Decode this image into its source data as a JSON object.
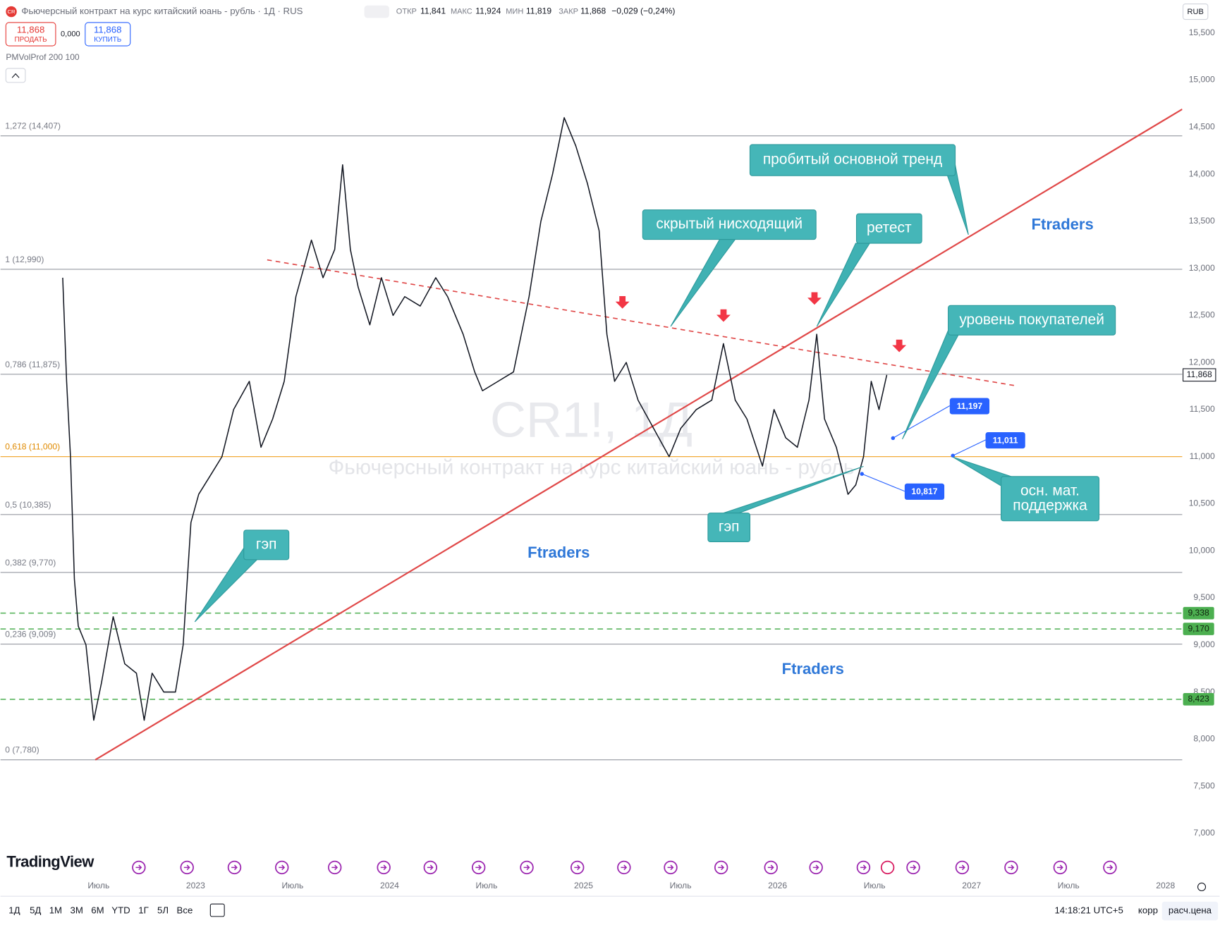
{
  "header": {
    "logo": "CR",
    "title": "Фьючерсный контракт на курс китайский юань - рубль · 1Д · RUS",
    "ohlc": [
      {
        "label": "ОТКР",
        "value": "11,841"
      },
      {
        "label": "МАКС",
        "value": "11,924"
      },
      {
        "label": "МИН",
        "value": "11,819"
      },
      {
        "label": "ЗАКР",
        "value": "11,868"
      }
    ],
    "change": "−0,029 (−0,24%)",
    "sell": {
      "price": "11,868",
      "label": "ПРОДАТЬ"
    },
    "spread": "0,000",
    "buy": {
      "price": "11,868",
      "label": "КУПИТЬ"
    },
    "indicator": "PMVolProf 200 100",
    "currency": "RUB"
  },
  "chart_data": {
    "type": "line",
    "watermark": "CR1!, 1Д",
    "watermark_subtitle": "Фьючерсный контракт на курс китайский юань - рубль",
    "color": "#131722",
    "x": [
      2022.315,
      2022.335,
      2022.355,
      2022.375,
      2022.395,
      2022.435,
      2022.475,
      2022.515,
      2022.575,
      2022.635,
      2022.695,
      2022.735,
      2022.776,
      2022.836,
      2022.896,
      2022.936,
      2022.976,
      2023.016,
      2023.076,
      2023.136,
      2023.196,
      2023.277,
      2023.337,
      2023.397,
      2023.457,
      2023.517,
      2023.597,
      2023.657,
      2023.717,
      2023.758,
      2023.798,
      2023.838,
      2023.898,
      2023.958,
      2024.018,
      2024.078,
      2024.158,
      2024.238,
      2024.299,
      2024.379,
      2024.439,
      2024.479,
      2024.559,
      2024.639,
      2024.719,
      2024.78,
      2024.84,
      2024.9,
      2024.96,
      2025.02,
      2025.08,
      2025.12,
      2025.16,
      2025.22,
      2025.281,
      2025.361,
      2025.441,
      2025.501,
      2025.581,
      2025.661,
      2025.721,
      2025.782,
      2025.842,
      2025.922,
      2025.982,
      2026.042,
      2026.102,
      2026.162,
      2026.202,
      2026.242,
      2026.303,
      2026.363,
      2026.403,
      2026.443,
      2026.483,
      2026.523,
      2026.563
    ],
    "values": [
      12.9,
      11.8,
      11.0,
      9.7,
      9.2,
      9.0,
      8.2,
      8.6,
      9.3,
      8.8,
      8.7,
      8.2,
      8.7,
      8.5,
      8.5,
      9.0,
      10.3,
      10.6,
      10.8,
      11.0,
      11.5,
      11.8,
      11.1,
      11.4,
      11.8,
      12.7,
      13.3,
      12.9,
      13.2,
      14.1,
      13.2,
      12.8,
      12.4,
      12.9,
      12.5,
      12.7,
      12.6,
      12.9,
      12.7,
      12.3,
      11.9,
      11.7,
      11.8,
      11.9,
      12.7,
      13.5,
      14.0,
      14.6,
      14.3,
      13.9,
      13.4,
      12.3,
      11.8,
      12.0,
      11.6,
      11.3,
      11.0,
      11.3,
      11.5,
      11.6,
      12.2,
      11.6,
      11.4,
      10.9,
      11.5,
      11.2,
      11.1,
      11.6,
      12.3,
      11.4,
      11.1,
      10.6,
      10.7,
      11.0,
      11.8,
      11.5,
      11.868
    ],
    "xlim": [
      2021.994,
      2028.086
    ],
    "xticks": [
      {
        "value": 2022.5,
        "label": "Июль"
      },
      2023,
      {
        "value": 2023.5,
        "label": "Июль"
      },
      2024,
      {
        "value": 2024.5,
        "label": "Июль"
      },
      2025,
      {
        "value": 2025.5,
        "label": "Июль"
      },
      2026,
      {
        "value": 2026.5,
        "label": "Июль"
      },
      2027,
      {
        "value": 2027.5,
        "label": "Июль"
      },
      2028
    ],
    "ylim": [
      6.81,
      15.85
    ],
    "yticks": [
      {
        "value": 7.0,
        "label": "7,000"
      },
      {
        "value": 7.5,
        "label": "7,500"
      },
      {
        "value": 8.0,
        "label": "8,000"
      },
      {
        "value": 8.5,
        "label": "8,500"
      },
      {
        "value": 9.0,
        "label": "9,000"
      },
      {
        "value": 9.5,
        "label": "9,500"
      },
      {
        "value": 10.0,
        "label": "10,000"
      },
      {
        "value": 10.5,
        "label": "10,500"
      },
      {
        "value": 11.0,
        "label": "11,000"
      },
      {
        "value": 11.5,
        "label": "11,500"
      },
      {
        "value": 12.0,
        "label": "12,000"
      },
      {
        "value": 12.5,
        "label": "12,500"
      },
      {
        "value": 13.0,
        "label": "13,000"
      },
      {
        "value": 13.5,
        "label": "13,500"
      },
      {
        "value": 14.0,
        "label": "14,000"
      },
      {
        "value": 14.5,
        "label": "14,500"
      },
      {
        "value": 15.0,
        "label": "15,000"
      },
      {
        "value": 15.5,
        "label": "15,500"
      }
    ],
    "grid": false,
    "last_price": {
      "value": 11.868,
      "label": "11,868"
    },
    "levels": [
      {
        "label": "1,272 (14,407)",
        "value": 14.407,
        "color": "#9598a1"
      },
      {
        "label": "1 (12,990)",
        "value": 12.99,
        "color": "#9598a1"
      },
      {
        "label": "0,786 (11,875)",
        "value": 11.875,
        "color": "#9598a1"
      },
      {
        "label": "0,618 (11,000)",
        "value": 11.0,
        "color": "#f0a020"
      },
      {
        "label": "0,5 (10,385)",
        "value": 10.385,
        "color": "#9598a1"
      },
      {
        "label": "0,382 (9,770)",
        "value": 9.77,
        "color": "#9598a1"
      },
      {
        "label": "0,236 (9,009)",
        "value": 9.009,
        "color": "#9598a1"
      },
      {
        "label": "0 (7,780)",
        "value": 7.78,
        "color": "#9598a1"
      }
    ],
    "support_levels": [
      {
        "value": 9.338,
        "label": "9,338"
      },
      {
        "value": 9.17,
        "label": "9,170"
      },
      {
        "value": 8.423,
        "label": "8,423"
      }
    ],
    "support_color": "#4caf50",
    "trendlines": [
      {
        "points": [
          [
            2022.483,
            7.78
          ],
          [
            2028.086,
            14.69
          ]
        ],
        "color": "#e04848",
        "dashed": false
      },
      {
        "points": [
          [
            2023.369,
            13.09
          ],
          [
            2027.236,
            11.75
          ]
        ],
        "color": "#e04848",
        "dashed": true
      }
    ],
    "price_marks": [
      {
        "value": 11.197,
        "label": "11,197"
      },
      {
        "value": 11.011,
        "label": "11,011"
      },
      {
        "value": 10.817,
        "label": "10,817"
      }
    ],
    "annotations": [
      {
        "lines": [
          "пробитый основной тренд"
        ]
      },
      {
        "lines": [
          "скрытый нисходящий"
        ]
      },
      {
        "lines": [
          "ретест"
        ]
      },
      {
        "lines": [
          "уровень покупателей"
        ]
      },
      {
        "lines": [
          "осн. мат.",
          "поддержка"
        ]
      },
      {
        "lines": [
          "гэп"
        ]
      },
      {
        "lines": [
          "гэп"
        ]
      }
    ],
    "signature": [
      "Ftraders",
      "Ftraders",
      "Ftraders"
    ]
  },
  "footer": {
    "logo_text": "TradingView",
    "ranges": [
      "1Д",
      "5Д",
      "1М",
      "3М",
      "6М",
      "YTD",
      "1Г",
      "5Л",
      "Все"
    ],
    "time": "14:18:21 UTC+5",
    "buttons": [
      "корр",
      "расч.цена"
    ]
  }
}
